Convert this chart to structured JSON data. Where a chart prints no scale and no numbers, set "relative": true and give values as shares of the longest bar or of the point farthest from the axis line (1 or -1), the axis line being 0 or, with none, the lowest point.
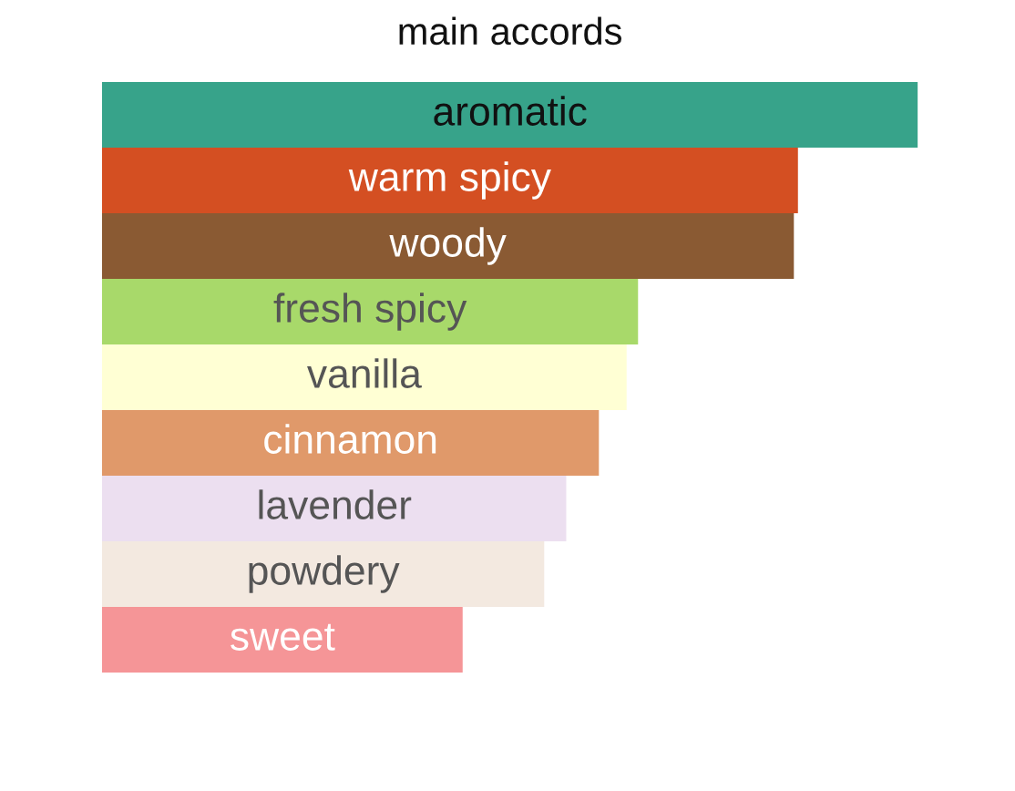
{
  "chart_data": {
    "type": "bar",
    "orientation": "horizontal",
    "relative": true,
    "title": "main accords",
    "categories": [
      "aromatic",
      "warm spicy",
      "woody",
      "fresh spicy",
      "vanilla",
      "cinnamon",
      "lavender",
      "powdery",
      "sweet"
    ],
    "values": [
      1,
      0.853,
      0.848,
      0.657,
      0.643,
      0.609,
      0.569,
      0.542,
      0.442
    ],
    "colors": [
      "#37a38a",
      "#d44f22",
      "#8a5a33",
      "#a8d96a",
      "#ffffd4",
      "#e0996a",
      "#ecdff0",
      "#f3e9e0",
      "#f59597"
    ]
  }
}
